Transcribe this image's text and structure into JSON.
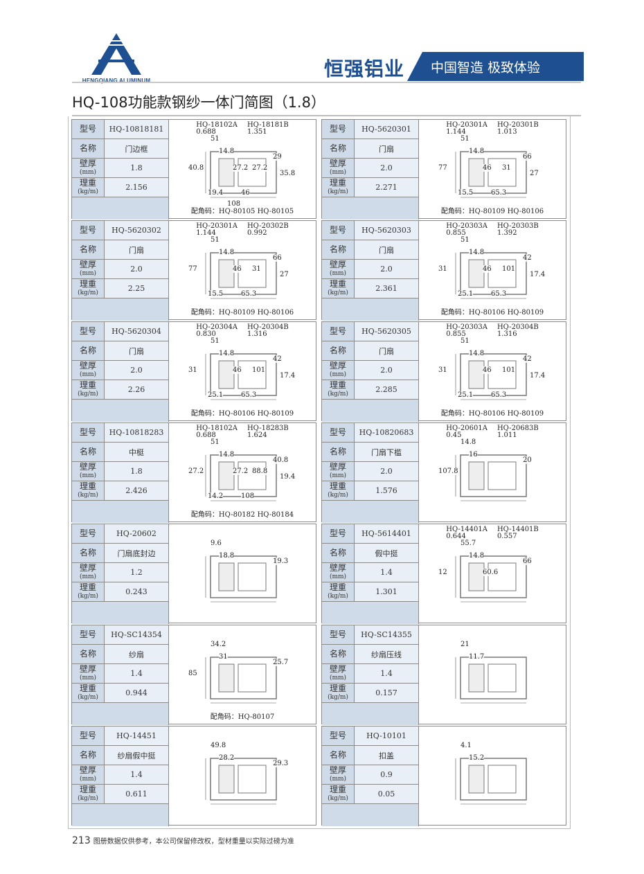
{
  "header": {
    "logo_text": "HENGQIANG ALUMINUM",
    "brand": "恒强铝业",
    "slogan": "中国智造 极致体验",
    "brand_color": "#1d4f91"
  },
  "title": "HQ-108功能款钢纱一体门简图（1.8）",
  "labels": {
    "model": "型号",
    "name": "名称",
    "thickness": "壁厚",
    "thickness_unit": "(mm)",
    "weight": "理重",
    "weight_unit": "(kg/m)"
  },
  "cards": [
    {
      "model": "HQ-10818181",
      "name": "门边框",
      "thickness": "1.8",
      "weight": "2.156",
      "parts": [
        [
          "HQ-18102A",
          "0.688"
        ],
        [
          "HQ-18181B",
          "1.351"
        ]
      ],
      "dims": [
        "51",
        "14.8",
        "29",
        "40.8",
        "27.2",
        "27.2",
        "35.8",
        "19.4",
        "46",
        "108"
      ],
      "corner": "配角码：HQ-80105    HQ-80105"
    },
    {
      "model": "HQ-5620301",
      "name": "门扇",
      "thickness": "2.0",
      "weight": "2.271",
      "parts": [
        [
          "HQ-20301A",
          "1.144"
        ],
        [
          "HQ-20301B",
          "1.013"
        ]
      ],
      "dims": [
        "51",
        "14.8",
        "66",
        "77",
        "46",
        "31",
        "27",
        "15.5",
        "65.3"
      ],
      "corner": "配角码：HQ-80109    HQ-80106"
    },
    {
      "model": "HQ-5620302",
      "name": "门扇",
      "thickness": "2.0",
      "weight": "2.25",
      "parts": [
        [
          "HQ-20301A",
          "1.144"
        ],
        [
          "HQ-20302B",
          "0.992"
        ]
      ],
      "dims": [
        "51",
        "14.8",
        "66",
        "77",
        "46",
        "31",
        "27",
        "15.5",
        "65.3"
      ],
      "corner": "配角码：HQ-80109    HQ-80106"
    },
    {
      "model": "HQ-5620303",
      "name": "门扇",
      "thickness": "2.0",
      "weight": "2.361",
      "parts": [
        [
          "HQ-20303A",
          "0.855"
        ],
        [
          "HQ-20303B",
          "1.392"
        ]
      ],
      "dims": [
        "51",
        "14.8",
        "42",
        "31",
        "46",
        "101",
        "17.4",
        "25.1",
        "65.3"
      ],
      "corner": "配角码：HQ-80106    HQ-80109"
    },
    {
      "model": "HQ-5620304",
      "name": "门扇",
      "thickness": "2.0",
      "weight": "2.26",
      "parts": [
        [
          "HQ-20304A",
          "0.830"
        ],
        [
          "HQ-20304B",
          "1.316"
        ]
      ],
      "dims": [
        "51",
        "14.8",
        "42",
        "31",
        "46",
        "101",
        "17.4",
        "25.1",
        "65.3"
      ],
      "corner": "配角码：HQ-80106    HQ-80109"
    },
    {
      "model": "HQ-5620305",
      "name": "门扇",
      "thickness": "2.0",
      "weight": "2.285",
      "parts": [
        [
          "HQ-20303A",
          "0.855"
        ],
        [
          "HQ-20304B",
          "1.316"
        ]
      ],
      "dims": [
        "51",
        "14.8",
        "42",
        "31",
        "46",
        "101",
        "17.4",
        "25.1",
        "65.3"
      ],
      "corner": "配角码：HQ-80106    HQ-80109"
    },
    {
      "model": "HQ-10818283",
      "name": "中梃",
      "thickness": "1.8",
      "weight": "2.426",
      "parts": [
        [
          "HQ-18102A",
          "0.688"
        ],
        [
          "HQ-18283B",
          "1.624"
        ]
      ],
      "dims": [
        "51",
        "14.8",
        "40.8",
        "27.2",
        "27.2",
        "88.8",
        "19.4",
        "14.2",
        "108"
      ],
      "corner": "配角码：HQ-80182    HQ-80184"
    },
    {
      "model": "HQ-10820683",
      "name": "门扇下槛",
      "thickness": "2.0",
      "weight": "1.576",
      "parts": [
        [
          "HQ-20601A",
          "0.45"
        ],
        [
          "HQ-20683B",
          "1.011"
        ]
      ],
      "dims": [
        "14.8",
        "16",
        "20",
        "107.8"
      ],
      "corner": ""
    },
    {
      "model": "HQ-20602",
      "name": "门扇底封边",
      "thickness": "1.2",
      "weight": "0.243",
      "parts": [],
      "dims": [
        "9.6",
        "18.8",
        "19.3"
      ],
      "corner": ""
    },
    {
      "model": "HQ-5614401",
      "name": "假中挺",
      "thickness": "1.4",
      "weight": "1.301",
      "parts": [
        [
          "HQ-14401A",
          "0.644"
        ],
        [
          "HQ-14401B",
          "0.557"
        ]
      ],
      "dims": [
        "55.7",
        "14.8",
        "66",
        "12",
        "60.6"
      ],
      "corner": ""
    },
    {
      "model": "HQ-SC14354",
      "name": "纱扇",
      "thickness": "1.4",
      "weight": "0.944",
      "parts": [],
      "dims": [
        "34.2",
        "31",
        "25.7",
        "85"
      ],
      "corner": "配角码：HQ-80107"
    },
    {
      "model": "HQ-SC14355",
      "name": "纱扇压线",
      "thickness": "1.4",
      "weight": "0.157",
      "parts": [],
      "dims": [
        "21",
        "11.7"
      ],
      "corner": ""
    },
    {
      "model": "HQ-14451",
      "name": "纱扇假中挺",
      "thickness": "1.4",
      "weight": "0.611",
      "parts": [],
      "dims": [
        "49.8",
        "28.2",
        "29.3"
      ],
      "corner": ""
    },
    {
      "model": "HQ-10101",
      "name": "扣盖",
      "thickness": "0.9",
      "weight": "0.05",
      "parts": [],
      "dims": [
        "4.1",
        "15.2"
      ],
      "corner": ""
    }
  ],
  "footer": {
    "page": "213",
    "note": "图册数据仅供参考，本公司保留修改权，型材重量以实际过磅为准"
  }
}
